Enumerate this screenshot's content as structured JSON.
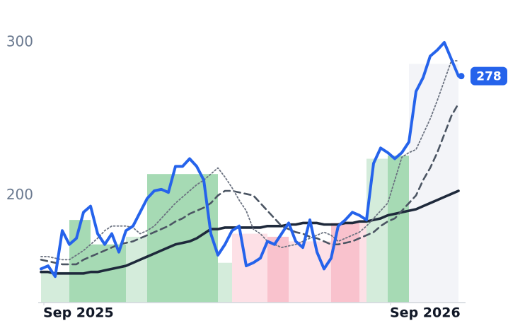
{
  "chart_data": {
    "type": "line",
    "categories": [
      "Sep 2025",
      null,
      null,
      null,
      null,
      null,
      null,
      null,
      null,
      null,
      null,
      null,
      null,
      null,
      null,
      null,
      null,
      null,
      null,
      null,
      null,
      null,
      null,
      null,
      null,
      null,
      null,
      null,
      null,
      null,
      null,
      null,
      null,
      null,
      null,
      null,
      null,
      null,
      null,
      null,
      null,
      null,
      null,
      null,
      null,
      null,
      null,
      null,
      null,
      "Sep 2026",
      null,
      null,
      null,
      null,
      null,
      null,
      null,
      null,
      null,
      null
    ],
    "series": [
      {
        "color": "#2563eb",
        "style": "solid",
        "values": [
          152,
          154,
          147,
          177,
          168,
          172,
          189,
          193,
          175,
          168,
          175,
          163,
          177,
          180,
          189,
          198,
          203,
          204,
          202,
          219,
          219,
          224,
          219,
          210,
          175,
          161,
          168,
          177,
          180,
          154,
          156,
          159,
          170,
          168,
          175,
          182,
          170,
          166,
          184,
          163,
          152,
          159,
          180,
          184,
          189,
          187,
          184,
          221,
          231,
          228,
          224,
          228,
          235,
          268,
          277,
          291,
          295,
          300,
          289,
          278
        ]
      },
      {
        "color": "#6b7280",
        "style": "dotted",
        "values": [
          160,
          160,
          159,
          158,
          158,
          161,
          164,
          168,
          172,
          177,
          180,
          180,
          180,
          179,
          175,
          177,
          180,
          185,
          190,
          195,
          199,
          203,
          207,
          210,
          214,
          218,
          212,
          205,
          197,
          190,
          178,
          175,
          170,
          168,
          166,
          167,
          168,
          170,
          172,
          174,
          176,
          174,
          170,
          172,
          174,
          176,
          180,
          185,
          190,
          195,
          210,
          225,
          228,
          230,
          240,
          250,
          262,
          275,
          288,
          288
        ]
      },
      {
        "color": "#4b5563",
        "style": "dashed",
        "values": [
          158,
          157,
          156,
          155,
          155,
          155,
          158,
          160,
          162,
          164,
          166,
          168,
          169,
          170,
          172,
          174,
          176,
          178,
          180,
          183,
          185,
          188,
          190,
          192,
          195,
          200,
          203,
          203,
          202,
          201,
          200,
          195,
          190,
          185,
          180,
          178,
          176,
          175,
          173,
          172,
          170,
          168,
          168,
          169,
          170,
          172,
          174,
          176,
          180,
          183,
          185,
          190,
          195,
          200,
          210,
          218,
          228,
          240,
          252,
          260
        ]
      },
      {
        "color": "#1e293b",
        "style": "thick",
        "values": [
          150,
          150,
          149,
          149,
          149,
          149,
          149,
          150,
          150,
          151,
          152,
          153,
          154,
          156,
          158,
          160,
          162,
          164,
          166,
          168,
          169,
          170,
          172,
          175,
          178,
          178,
          179,
          179,
          179,
          179,
          179,
          179,
          180,
          180,
          180,
          181,
          181,
          182,
          182,
          182,
          181,
          181,
          181,
          182,
          182,
          183,
          183,
          184,
          185,
          187,
          188,
          189,
          190,
          191,
          193,
          195,
          197,
          199,
          201,
          203
        ]
      }
    ],
    "bands": [
      {
        "start": 0,
        "end": 4,
        "value": 150,
        "color": "#d4ecdb"
      },
      {
        "start": 4,
        "end": 7,
        "value": 184,
        "color": "#a6dab4"
      },
      {
        "start": 7,
        "end": 12,
        "value": 168,
        "color": "#a6dab4"
      },
      {
        "start": 12,
        "end": 15,
        "value": 173,
        "color": "#d4ecdb"
      },
      {
        "start": 15,
        "end": 25,
        "value": 214,
        "color": "#a6dab4"
      },
      {
        "start": 25,
        "end": 27,
        "value": 156,
        "color": "#d4ecdb"
      },
      {
        "start": 27,
        "end": 32,
        "value": 175,
        "color": "#fde0e6"
      },
      {
        "start": 32,
        "end": 35,
        "value": 173,
        "color": "#f9c2cd"
      },
      {
        "start": 35,
        "end": 41,
        "value": 170,
        "color": "#fde0e6"
      },
      {
        "start": 41,
        "end": 45,
        "value": 182,
        "color": "#f9c2cd"
      },
      {
        "start": 45,
        "end": 46,
        "value": 182,
        "color": "#fde0e6"
      },
      {
        "start": 46,
        "end": 49,
        "value": 224,
        "color": "#d4ecdb"
      },
      {
        "start": 49,
        "end": 52,
        "value": 226,
        "color": "#a6dab4"
      },
      {
        "start": 52,
        "end": 59,
        "value": 286,
        "color": "#f3f4f8"
      }
    ],
    "ylim": [
      130,
      310
    ],
    "yticks": [
      200,
      300
    ]
  }
}
